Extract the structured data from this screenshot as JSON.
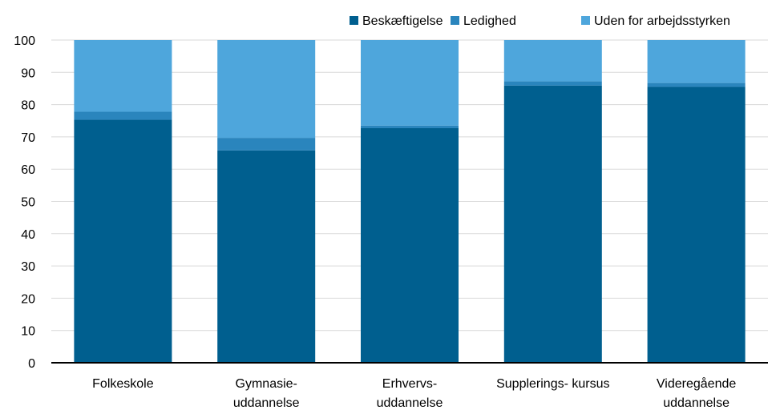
{
  "chart_data": {
    "type": "bar",
    "stacked": true,
    "categories": [
      [
        "Folkeskole"
      ],
      [
        "Gymnasie-",
        "uddannelse"
      ],
      [
        "Erhvervs-",
        "uddannelse"
      ],
      [
        "Supplerings- kursus"
      ],
      [
        "Videregående",
        "uddannelse"
      ]
    ],
    "series": [
      {
        "name": "Beskæftigelse",
        "color": "#005F8F",
        "values": [
          75.3,
          65.8,
          72.7,
          85.9,
          85.5
        ]
      },
      {
        "name": "Ledighed",
        "color": "#2A85BD",
        "values": [
          2.5,
          3.9,
          0.8,
          1.3,
          1.2
        ]
      },
      {
        "name": "Uden for arbejdsstyrken",
        "color": "#4EA6DC",
        "values": [
          22.2,
          30.3,
          26.5,
          12.8,
          13.3
        ]
      }
    ],
    "ylim": [
      0,
      100
    ],
    "yticks": [
      0,
      10,
      20,
      30,
      40,
      50,
      60,
      70,
      80,
      90,
      100
    ],
    "grid": true,
    "legend_position": "top-right"
  }
}
